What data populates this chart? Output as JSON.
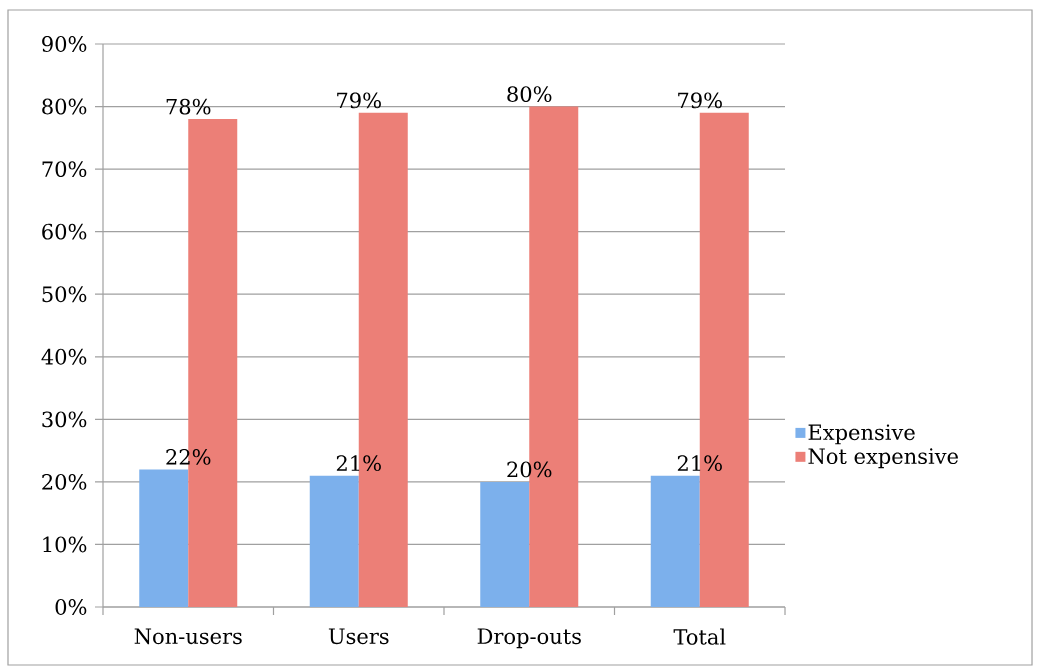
{
  "chart_data": {
    "type": "bar",
    "categories": [
      "Non-users",
      "Users",
      "Drop-outs",
      "Total"
    ],
    "series": [
      {
        "name": "Expensive",
        "color": "#7cb0ec",
        "values": [
          22,
          21,
          20,
          21
        ],
        "value_labels": [
          "22%",
          "21%",
          "20%",
          "21%"
        ]
      },
      {
        "name": "Not expensive",
        "color": "#ec7f77",
        "values": [
          78,
          79,
          80,
          79
        ],
        "value_labels": [
          "78%",
          "79%",
          "80%",
          "79%"
        ]
      }
    ],
    "ylim": [
      0,
      90
    ],
    "yticks": [
      {
        "value": 0,
        "label": "0%"
      },
      {
        "value": 10,
        "label": "10%"
      },
      {
        "value": 20,
        "label": "20%"
      },
      {
        "value": 30,
        "label": "30%"
      },
      {
        "value": 40,
        "label": "40%"
      },
      {
        "value": 50,
        "label": "50%"
      },
      {
        "value": 60,
        "label": "60%"
      },
      {
        "value": 70,
        "label": "70%"
      },
      {
        "value": 80,
        "label": "80%"
      },
      {
        "value": 90,
        "label": "90%"
      }
    ],
    "grid": "y",
    "legend": "right"
  }
}
